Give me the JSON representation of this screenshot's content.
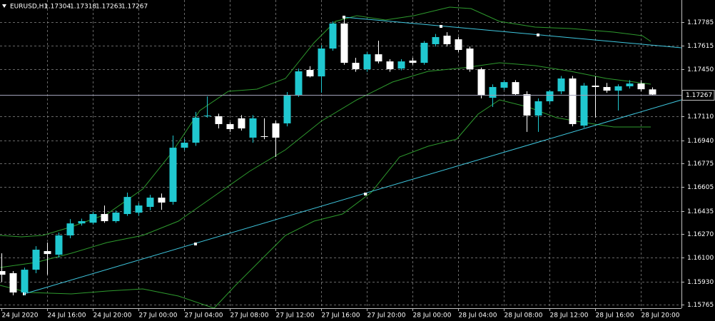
{
  "chart_data": {
    "type": "candlestick",
    "symbol": "EURUSD,H1",
    "up_color": "#20c8d0",
    "down_color": "#ffffff",
    "grid": true,
    "current_price": 1.17267,
    "categories": [
      "24 Jul 2020",
      null,
      null,
      null,
      "24 Jul 16:00",
      null,
      null,
      null,
      "24 Jul 20:00",
      null,
      null,
      null,
      "27 Jul 00:00",
      null,
      null,
      null,
      "27 Jul 04:00",
      null,
      null,
      null,
      "27 Jul 08:00",
      null,
      null,
      null,
      "27 Jul 12:00",
      null,
      null,
      null,
      "27 Jul 16:00",
      null,
      null,
      null,
      "27 Jul 20:00",
      null,
      null,
      null,
      "28 Jul 00:00",
      null,
      null,
      null,
      "28 Jul 04:00",
      null,
      null,
      null,
      "28 Jul 08:00",
      null,
      null,
      null,
      "28 Jul 12:00",
      null,
      null,
      null,
      "28 Jul 16:00",
      null,
      null,
      null,
      "28 Jul 20:00",
      null
    ],
    "open": [
      1.16005,
      1.1599,
      1.15852,
      1.16015,
      1.16148,
      1.16122,
      1.1626,
      1.16346,
      1.16351,
      1.16413,
      1.16362,
      1.16413,
      1.16423,
      1.16464,
      1.1653,
      1.165,
      1.16887,
      1.16923,
      1.17112,
      1.17112,
      1.17056,
      1.17097,
      1.16959,
      1.16969,
      1.17061,
      1.17061,
      1.17265,
      1.17443,
      1.17397,
      1.17596,
      1.17775,
      1.17494,
      1.17448,
      1.17555,
      1.17504,
      1.17453,
      1.1751,
      1.17494,
      1.17627,
      1.17688,
      1.17662,
      1.17596,
      1.17448,
      1.17244,
      1.17316,
      1.17356,
      1.1727,
      1.17117,
      1.17219,
      1.1729,
      1.17382,
      1.17045,
      1.17331,
      1.17321,
      1.17295,
      1.17326,
      1.17346,
      1.17304
    ],
    "high": [
      1.16132,
      1.16005,
      1.1603,
      1.16183,
      1.16209,
      1.1628,
      1.16377,
      1.1638,
      1.16428,
      1.16474,
      1.16438,
      1.16566,
      1.1649,
      1.1655,
      1.1656,
      1.16974,
      1.1695,
      1.17143,
      1.17254,
      1.1713,
      1.1707,
      1.1712,
      1.1712,
      1.17097,
      1.1708,
      1.17285,
      1.17453,
      1.1747,
      1.1762,
      1.1779,
      1.17816,
      1.1753,
      1.1757,
      1.17652,
      1.1752,
      1.1752,
      1.1753,
      1.1765,
      1.177,
      1.17713,
      1.1768,
      1.1761,
      1.1746,
      1.1734,
      1.1737,
      1.1737,
      1.1729,
      1.1724,
      1.173,
      1.174,
      1.174,
      1.1735,
      1.17397,
      1.1735,
      1.1734,
      1.1737,
      1.1737,
      1.17318
    ],
    "low": [
      1.15928,
      1.15832,
      1.15832,
      1.1599,
      1.15979,
      1.161,
      1.1624,
      1.1633,
      1.1634,
      1.1635,
      1.1635,
      1.164,
      1.164,
      1.1644,
      1.16443,
      1.1648,
      1.1687,
      1.169,
      1.17102,
      1.17025,
      1.17,
      1.1701,
      1.16923,
      1.16948,
      1.16821,
      1.1704,
      1.1725,
      1.1739,
      1.1728,
      1.1758,
      1.1748,
      1.1743,
      1.1743,
      1.1749,
      1.1743,
      1.1744,
      1.1748,
      1.1748,
      1.1761,
      1.1761,
      1.1757,
      1.1743,
      1.1724,
      1.17178,
      1.173,
      1.1726,
      1.17,
      1.17,
      1.172,
      1.1727,
      1.1704,
      1.1703,
      1.17102,
      1.1728,
      1.17153,
      1.1731,
      1.1729,
      1.17263
    ],
    "close": [
      1.15979,
      1.15852,
      1.16015,
      1.16158,
      1.16127,
      1.1626,
      1.16346,
      1.16362,
      1.16413,
      1.16362,
      1.16423,
      1.16535,
      1.16474,
      1.1653,
      1.16495,
      1.16887,
      1.16923,
      1.17102,
      1.17117,
      1.17056,
      1.1702,
      1.17025,
      1.17097,
      1.16964,
      1.16959,
      1.17265,
      1.17433,
      1.17397,
      1.17596,
      1.17775,
      1.17494,
      1.17448,
      1.17555,
      1.17504,
      1.17448,
      1.17504,
      1.17494,
      1.17637,
      1.17678,
      1.17627,
      1.17586,
      1.17448,
      1.17265,
      1.17321,
      1.17356,
      1.1727,
      1.17117,
      1.17219,
      1.1729,
      1.17382,
      1.17056,
      1.17331,
      1.17321,
      1.17295,
      1.17326,
      1.17346,
      1.17305,
      1.17267
    ],
    "ylim": [
      1.1574,
      1.17943
    ],
    "yticks": [
      1.17785,
      1.17615,
      {
        "value": 1.1745,
        "label": "1.17450"
      },
      {
        "value": 1.1711,
        "label": "1.17110"
      },
      {
        "value": 1.1694,
        "label": "1.16940"
      },
      1.16775,
      1.16605,
      1.16435,
      {
        "value": 1.1627,
        "label": "1.16270"
      },
      {
        "value": 1.161,
        "label": "1.16100"
      },
      {
        "value": 1.1593,
        "label": "1.15930"
      },
      1.15765
    ]
  }
}
